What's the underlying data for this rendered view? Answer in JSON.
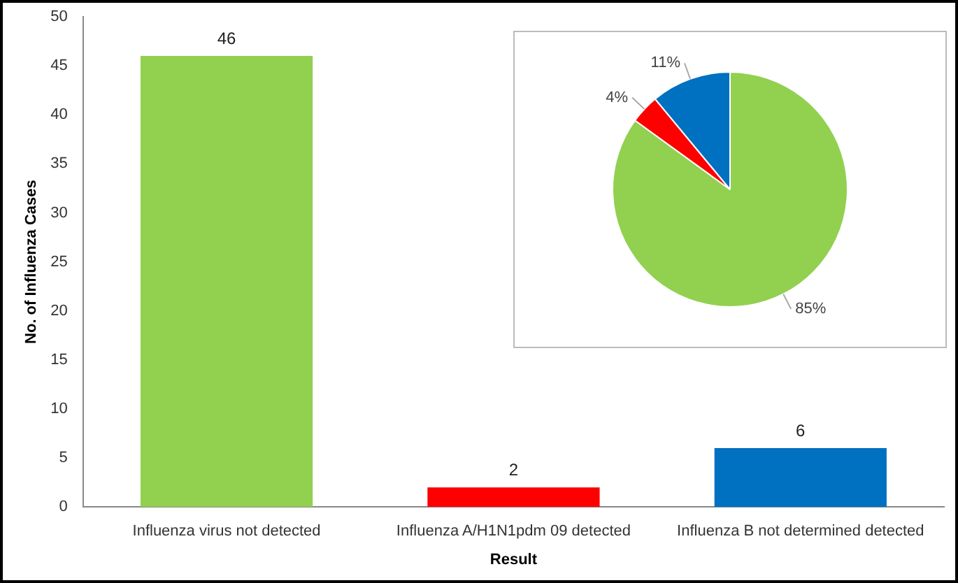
{
  "chart_data": [
    {
      "type": "bar",
      "xlabel": "Result",
      "ylabel": "No. of Influenza Cases",
      "categories": [
        "Influenza virus not detected",
        "Influenza A/H1N1pdm 09 detected",
        "Influenza B not determined detected"
      ],
      "values": [
        46,
        2,
        6
      ],
      "colors": [
        "#92d050",
        "#ff0000",
        "#0070c0"
      ],
      "ylim": [
        0,
        50
      ],
      "yticks": [
        0,
        5,
        10,
        15,
        20,
        25,
        30,
        35,
        40,
        45,
        50
      ],
      "grid": false,
      "legend": false,
      "data_labels": true
    },
    {
      "type": "pie",
      "categories": [
        null,
        null,
        null
      ],
      "values": [
        85,
        4,
        11
      ],
      "colors": [
        "#92d050",
        "#ff0000",
        "#0070c0"
      ],
      "value_labels": [
        "85%",
        "4%",
        "11%"
      ],
      "legend": false
    }
  ]
}
